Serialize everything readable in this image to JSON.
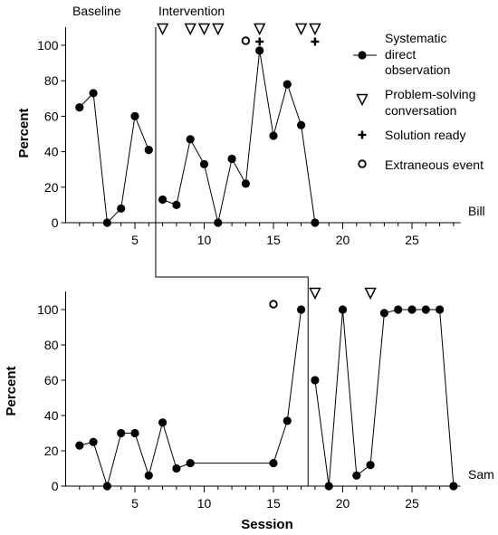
{
  "chart_data": {
    "type": "scatter",
    "xlabel": "Session",
    "ylabel": "Percent",
    "xlim": [
      0,
      28.5
    ],
    "ylim": [
      0,
      110
    ],
    "xticks": [
      5,
      10,
      15,
      20,
      25
    ],
    "yticks": [
      0,
      20,
      40,
      60,
      80,
      100
    ],
    "phase_labels": [
      "Baseline",
      "Intervention"
    ],
    "legend_placement": "top-right",
    "legend": [
      {
        "marker": "filled-circle-line",
        "label_lines": [
          "Systematic",
          "direct",
          "observation"
        ]
      },
      {
        "marker": "open-triangle-down",
        "label_lines": [
          "Problem-solving",
          "conversation"
        ]
      },
      {
        "marker": "plus",
        "label_lines": [
          "Solution ready"
        ]
      },
      {
        "marker": "open-circle",
        "label_lines": [
          "Extraneous event"
        ]
      }
    ],
    "panels": [
      {
        "subject": "Bill",
        "phase_change_x": 6.5,
        "baseline": {
          "x": [
            1,
            2,
            3,
            4,
            5,
            6
          ],
          "y": [
            65,
            73,
            0,
            8,
            60,
            41
          ]
        },
        "intervention": {
          "x": [
            7,
            8,
            9,
            10,
            11,
            12,
            13,
            14,
            15,
            16,
            17,
            18
          ],
          "y": [
            13,
            10,
            47,
            33,
            0,
            36,
            22,
            97,
            49,
            78,
            55,
            0
          ]
        },
        "problem_solving_sessions": [
          7,
          9,
          10,
          11,
          14,
          17,
          18
        ],
        "solution_ready_sessions": [
          14,
          18
        ],
        "extraneous_event_sessions": [
          13
        ]
      },
      {
        "subject": "Sam",
        "phase_change_x": 17.5,
        "baseline": {
          "x": [
            1,
            2,
            3,
            4,
            5,
            6,
            7,
            8,
            9,
            15,
            16,
            17
          ],
          "y": [
            23,
            25,
            0,
            30,
            30,
            6,
            36,
            10,
            13,
            13,
            37,
            100
          ]
        },
        "intervention": {
          "x": [
            18,
            19,
            20,
            21,
            22,
            23,
            24,
            25,
            26,
            27,
            28
          ],
          "y": [
            60,
            0,
            100,
            6,
            12,
            98,
            100,
            100,
            100,
            100,
            0
          ]
        },
        "problem_solving_sessions": [
          18,
          22
        ],
        "solution_ready_sessions": [],
        "extraneous_event_sessions": [
          15
        ]
      }
    ]
  }
}
